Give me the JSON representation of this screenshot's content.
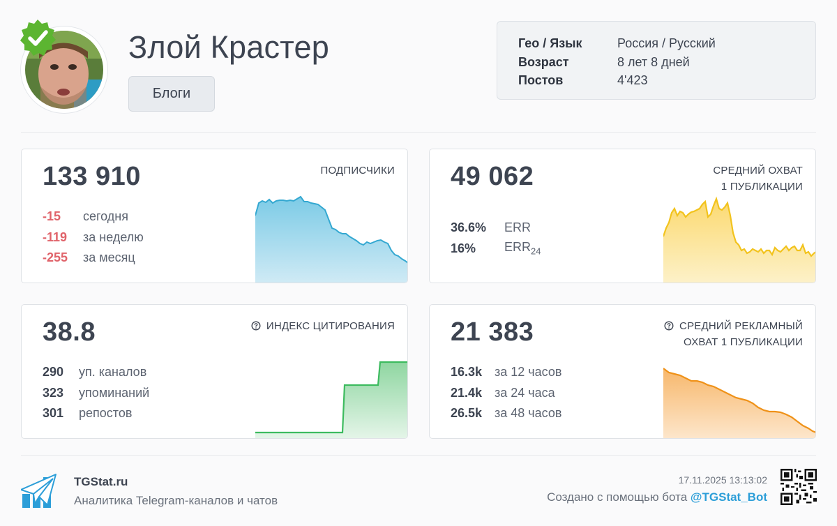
{
  "channel": {
    "title": "Злой Крастер",
    "category": "Блоги",
    "info": [
      {
        "label": "Гео / Язык",
        "value": "Россия / Русский"
      },
      {
        "label": "Возраст",
        "value": "8 лет 8 дней"
      },
      {
        "label": "Постов",
        "value": "4'423"
      }
    ]
  },
  "cards": {
    "subscribers": {
      "value": "133 910",
      "label": "ПОДПИСЧИКИ",
      "stats": [
        {
          "num": "-15",
          "text": "сегодня"
        },
        {
          "num": "-119",
          "text": "за неделю"
        },
        {
          "num": "-255",
          "text": "за месяц"
        }
      ],
      "color": "#34a8d1"
    },
    "reach": {
      "value": "49 062",
      "label_line1": "СРЕДНИЙ ОХВАТ",
      "label_line2": "1 ПУБЛИКАЦИИ",
      "err_value": "36.6%",
      "err_label": "ERR",
      "err24_value": "16%",
      "err24_label": "ERR",
      "err24_sub": "24",
      "color": "#f2c31d"
    },
    "citation": {
      "value": "38.8",
      "label": "ИНДЕКС ЦИТИРОВАНИЯ",
      "stats": [
        {
          "num": "290",
          "text": "уп. каналов"
        },
        {
          "num": "323",
          "text": "упоминаний"
        },
        {
          "num": "301",
          "text": "репостов"
        }
      ],
      "color": "#3dbb5f"
    },
    "ad_reach": {
      "value": "21 383",
      "label_line1": "СРЕДНИЙ РЕКЛАМНЫЙ",
      "label_line2": "ОХВАТ 1 ПУБЛИКАЦИИ",
      "stats": [
        {
          "num": "16.3k",
          "text": "за 12 часов"
        },
        {
          "num": "21.4k",
          "text": "за 24 часа"
        },
        {
          "num": "26.5k",
          "text": "за 48 часов"
        }
      ],
      "color": "#ef9219"
    }
  },
  "footer": {
    "brand": "TGStat.ru",
    "subtitle": "Аналитика Telegram-каналов и чатов",
    "date": "17.11.2025 13:13:02",
    "created_text": "Создано с помощью бота",
    "bot": "@TGStat_Bot"
  }
}
